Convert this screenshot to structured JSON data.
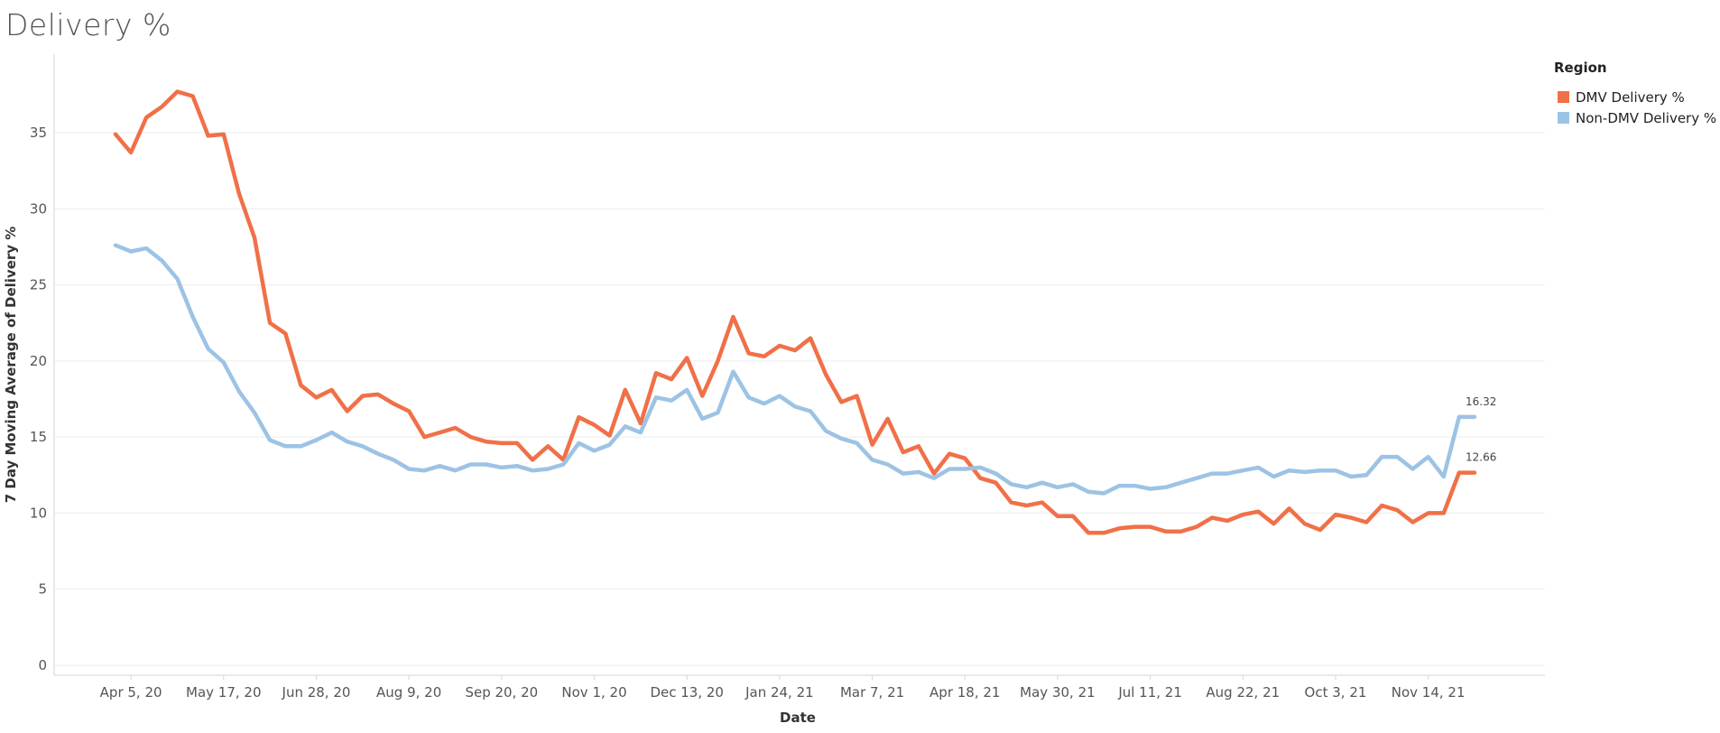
{
  "chart_data": {
    "type": "line",
    "title": "Delivery %",
    "xlabel": "Date",
    "ylabel": "7 Day Moving Average of Delivery %",
    "ylim": [
      0,
      39
    ],
    "yticks": [
      0,
      5,
      10,
      15,
      20,
      25,
      30,
      35
    ],
    "grid": "horizontal",
    "legend_title": "Region",
    "legend_position": "right",
    "x_tick_labels": [
      "Apr 5, 20",
      "May 17, 20",
      "Jun 28, 20",
      "Aug 9, 20",
      "Sep 20, 20",
      "Nov 1, 20",
      "Dec 13, 20",
      "Jan 24, 21",
      "Mar 7, 21",
      "Apr 18, 21",
      "May 30, 21",
      "Jul 11, 21",
      "Aug 22, 21",
      "Oct 3, 21",
      "Nov 14, 21"
    ],
    "x": [
      "2020-03-29",
      "2020-04-05",
      "2020-04-12",
      "2020-04-19",
      "2020-04-26",
      "2020-05-03",
      "2020-05-10",
      "2020-05-17",
      "2020-05-24",
      "2020-05-31",
      "2020-06-07",
      "2020-06-14",
      "2020-06-21",
      "2020-06-28",
      "2020-07-05",
      "2020-07-12",
      "2020-07-19",
      "2020-07-26",
      "2020-08-02",
      "2020-08-09",
      "2020-08-16",
      "2020-08-23",
      "2020-08-30",
      "2020-09-06",
      "2020-09-13",
      "2020-09-20",
      "2020-09-27",
      "2020-10-04",
      "2020-10-11",
      "2020-10-18",
      "2020-10-25",
      "2020-11-01",
      "2020-11-08",
      "2020-11-15",
      "2020-11-22",
      "2020-11-29",
      "2020-12-06",
      "2020-12-13",
      "2020-12-20",
      "2020-12-27",
      "2021-01-03",
      "2021-01-10",
      "2021-01-17",
      "2021-01-24",
      "2021-01-31",
      "2021-02-07",
      "2021-02-14",
      "2021-02-21",
      "2021-02-28",
      "2021-03-07",
      "2021-03-14",
      "2021-03-21",
      "2021-03-28",
      "2021-04-04",
      "2021-04-11",
      "2021-04-18",
      "2021-04-25",
      "2021-05-02",
      "2021-05-09",
      "2021-05-16",
      "2021-05-23",
      "2021-05-30",
      "2021-06-06",
      "2021-06-13",
      "2021-06-20",
      "2021-06-27",
      "2021-07-04",
      "2021-07-11",
      "2021-07-18",
      "2021-07-25",
      "2021-08-01",
      "2021-08-08",
      "2021-08-15",
      "2021-08-22",
      "2021-08-29",
      "2021-09-05",
      "2021-09-12",
      "2021-09-19",
      "2021-09-26",
      "2021-10-03",
      "2021-10-10",
      "2021-10-17",
      "2021-10-24",
      "2021-10-31",
      "2021-11-07",
      "2021-11-14",
      "2021-11-21",
      "2021-11-28",
      "2021-12-05"
    ],
    "series": [
      {
        "name": "DMV Delivery %",
        "color": "#F07048",
        "end_label": "12.66",
        "values": [
          34.9,
          33.7,
          36.0,
          36.7,
          37.7,
          37.4,
          34.8,
          34.9,
          31.0,
          28.1,
          22.5,
          21.8,
          18.4,
          17.6,
          18.1,
          16.7,
          17.7,
          17.8,
          17.2,
          16.7,
          15.0,
          15.3,
          15.6,
          15.0,
          14.7,
          14.6,
          14.6,
          13.5,
          14.4,
          13.5,
          16.3,
          15.8,
          15.1,
          18.1,
          15.9,
          19.2,
          18.8,
          20.2,
          17.7,
          20.0,
          22.9,
          20.5,
          20.3,
          21.0,
          20.7,
          21.5,
          19.1,
          17.3,
          17.7,
          14.5,
          16.2,
          14.0,
          14.4,
          12.6,
          13.9,
          13.6,
          12.3,
          12.0,
          10.7,
          10.5,
          10.7,
          9.8,
          9.8,
          8.7,
          8.7,
          9.0,
          9.1,
          9.1,
          8.8,
          8.8,
          9.1,
          9.7,
          9.5,
          9.9,
          10.1,
          9.3,
          10.3,
          9.3,
          8.9,
          9.9,
          9.7,
          9.4,
          10.5,
          10.2,
          9.4,
          10.0,
          10.0,
          12.66,
          12.66
        ]
      },
      {
        "name": "Non-DMV Delivery %",
        "color": "#9DC3E4",
        "end_label": "16.32",
        "values": [
          27.6,
          27.2,
          27.4,
          26.6,
          25.4,
          22.9,
          20.8,
          19.9,
          18.0,
          16.6,
          14.8,
          14.4,
          14.4,
          14.8,
          15.3,
          14.7,
          14.4,
          13.9,
          13.5,
          12.9,
          12.8,
          13.1,
          12.8,
          13.2,
          13.2,
          13.0,
          13.1,
          12.8,
          12.9,
          13.2,
          14.6,
          14.1,
          14.5,
          15.7,
          15.3,
          17.6,
          17.4,
          18.1,
          16.2,
          16.6,
          19.3,
          17.6,
          17.2,
          17.7,
          17.0,
          16.7,
          15.4,
          14.9,
          14.6,
          13.5,
          13.2,
          12.6,
          12.7,
          12.3,
          12.9,
          12.9,
          13.0,
          12.6,
          11.9,
          11.7,
          12.0,
          11.7,
          11.9,
          11.4,
          11.3,
          11.8,
          11.8,
          11.6,
          11.7,
          12.0,
          12.3,
          12.6,
          12.6,
          12.8,
          13.0,
          12.4,
          12.8,
          12.7,
          12.8,
          12.8,
          12.4,
          12.5,
          13.7,
          13.7,
          12.9,
          13.7,
          12.4,
          16.32,
          16.32
        ]
      }
    ]
  }
}
